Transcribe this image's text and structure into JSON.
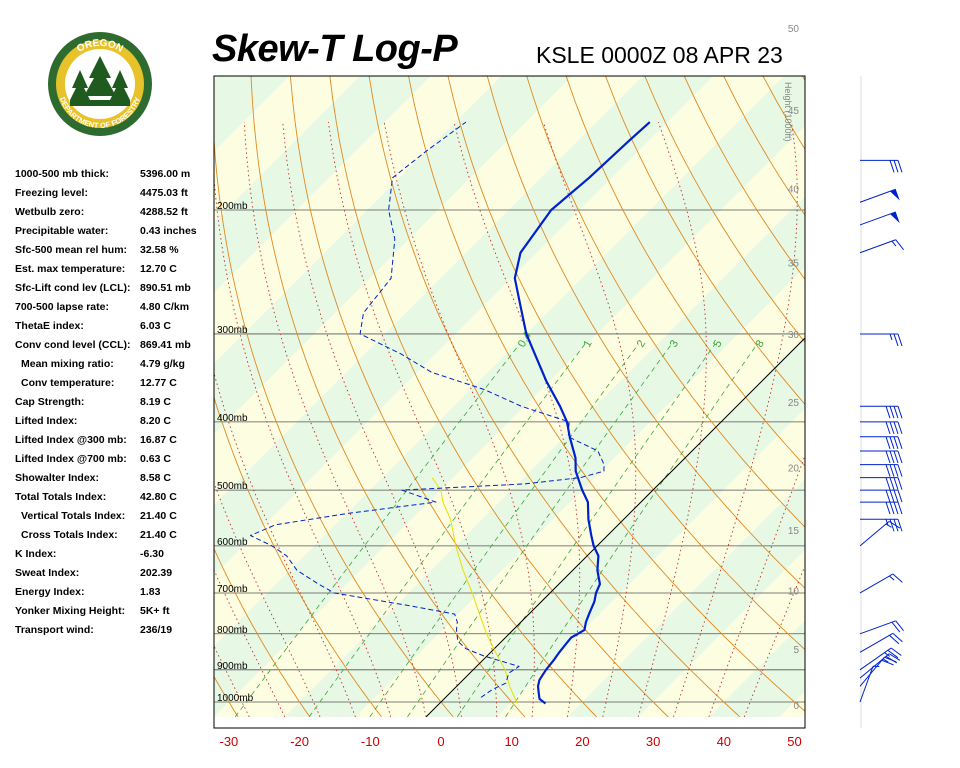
{
  "header": {
    "title": "Skew-T Log-P",
    "station": "KSLE 0000Z 08 APR 23"
  },
  "logo": {
    "top_text": "OREGON",
    "bottom_text": "DEPARTMENT OF FORESTRY",
    "colors": {
      "ring": "#2e6b2e",
      "gold": "#e8c22b",
      "tree": "#1f5a1f"
    }
  },
  "stats": [
    {
      "label": "1000-500 mb thick:",
      "value": "5396.00 m",
      "indent": false
    },
    {
      "label": "Freezing level:",
      "value": "4475.03 ft",
      "indent": false
    },
    {
      "label": "Wetbulb zero:",
      "value": "4288.52 ft",
      "indent": false
    },
    {
      "label": "Precipitable water:",
      "value": "0.43 inches",
      "indent": false
    },
    {
      "label": "Sfc-500 mean rel hum:",
      "value": "32.58 %",
      "indent": false
    },
    {
      "label": "Est. max temperature:",
      "value": "12.70 C",
      "indent": false
    },
    {
      "label": "Sfc-Lift cond lev (LCL):",
      "value": "890.51 mb",
      "indent": false
    },
    {
      "label": "700-500 lapse rate:",
      "value": "4.80 C/km",
      "indent": false
    },
    {
      "label": "ThetaE index:",
      "value": "6.03 C",
      "indent": false
    },
    {
      "label": "Conv cond level (CCL):",
      "value": "869.41 mb",
      "indent": false
    },
    {
      "label": "Mean mixing ratio:",
      "value": "4.79 g/kg",
      "indent": true
    },
    {
      "label": "Conv temperature:",
      "value": "12.77 C",
      "indent": true
    },
    {
      "label": "Cap Strength:",
      "value": "8.19 C",
      "indent": false
    },
    {
      "label": "Lifted Index:",
      "value": "8.20 C",
      "indent": false
    },
    {
      "label": "Lifted Index @300 mb:",
      "value": "16.87 C",
      "indent": false
    },
    {
      "label": "Lifted Index @700 mb:",
      "value": "0.63 C",
      "indent": false
    },
    {
      "label": "Showalter Index:",
      "value": "8.58 C",
      "indent": false
    },
    {
      "label": "Total Totals Index:",
      "value": "42.80 C",
      "indent": false
    },
    {
      "label": "Vertical Totals Index:",
      "value": "21.40 C",
      "indent": true
    },
    {
      "label": "Cross Totals Index:",
      "value": "21.40 C",
      "indent": true
    },
    {
      "label": "K Index:",
      "value": "-6.30",
      "indent": false
    },
    {
      "label": "Sweat Index:",
      "value": "202.39",
      "indent": false
    },
    {
      "label": "Energy Index:",
      "value": "1.83",
      "indent": false
    },
    {
      "label": "Yonker Mixing Height:",
      "value": "5K+ ft",
      "indent": false
    },
    {
      "label": "Transport wind:",
      "value": "236/19",
      "indent": false
    }
  ],
  "chart_data": {
    "type": "line",
    "title": "Skew-T Log-P",
    "x_axis": {
      "ticks": [
        -30,
        -20,
        -10,
        0,
        10,
        20,
        30,
        40,
        50
      ],
      "range": [
        -30,
        50
      ],
      "color": "#cc0000"
    },
    "pressure_levels": [
      {
        "p": 200,
        "label": "200mb"
      },
      {
        "p": 300,
        "label": "300mb"
      },
      {
        "p": 400,
        "label": "400mb"
      },
      {
        "p": 500,
        "label": "500mb"
      },
      {
        "p": 600,
        "label": "600mb"
      },
      {
        "p": 700,
        "label": "700mb"
      },
      {
        "p": 800,
        "label": "800mb"
      },
      {
        "p": 900,
        "label": "900mb"
      },
      {
        "p": 1000,
        "label": "1000mb"
      }
    ],
    "height_axis": {
      "label": "Height (1000ft)",
      "ticks": [
        0,
        5,
        10,
        15,
        20,
        25,
        30,
        35,
        40,
        45,
        50
      ]
    },
    "mixing_ratio_labels": [
      "0.4",
      "1",
      "2",
      "3",
      "5",
      "8"
    ],
    "temperature_line": {
      "name": "Temperature",
      "color": "#0022cc",
      "points": [
        [
          1005,
          15.0
        ],
        [
          990,
          13.5
        ],
        [
          970,
          12.5
        ],
        [
          950,
          11.5
        ],
        [
          930,
          10.8
        ],
        [
          900,
          10.3
        ],
        [
          870,
          10.0
        ],
        [
          850,
          9.7
        ],
        [
          830,
          9.5
        ],
        [
          810,
          9.3
        ],
        [
          790,
          10.1
        ],
        [
          770,
          9.2
        ],
        [
          750,
          8.5
        ],
        [
          720,
          7.5
        ],
        [
          700,
          6.5
        ],
        [
          680,
          5.8
        ],
        [
          650,
          3.5
        ],
        [
          620,
          1.6
        ],
        [
          600,
          -0.5
        ],
        [
          580,
          -2.3
        ],
        [
          550,
          -5.0
        ],
        [
          520,
          -7.5
        ],
        [
          500,
          -10.0
        ],
        [
          470,
          -13.6
        ],
        [
          450,
          -15.5
        ],
        [
          420,
          -19.3
        ],
        [
          400,
          -21.8
        ],
        [
          380,
          -25.0
        ],
        [
          350,
          -30.5
        ],
        [
          300,
          -40.0
        ],
        [
          270,
          -45.5
        ],
        [
          250,
          -49.5
        ],
        [
          230,
          -52.3
        ],
        [
          200,
          -54.0
        ],
        [
          180,
          -53.2
        ],
        [
          160,
          -52.8
        ],
        [
          150,
          -52.5
        ]
      ]
    },
    "dewpoint_line": {
      "name": "Dewpoint",
      "color": "#0022cc",
      "points": [
        [
          985,
          5.0
        ],
        [
          960,
          5.5
        ],
        [
          940,
          6.5
        ],
        [
          910,
          5.5
        ],
        [
          890,
          6.0
        ],
        [
          860,
          -0.5
        ],
        [
          840,
          -4.0
        ],
        [
          820,
          -6.2
        ],
        [
          790,
          -8.0
        ],
        [
          770,
          -9.0
        ],
        [
          750,
          -10.5
        ],
        [
          730,
          -18.0
        ],
        [
          700,
          -30.5
        ],
        [
          680,
          -34.0
        ],
        [
          650,
          -39.0
        ],
        [
          620,
          -42.5
        ],
        [
          600,
          -46.0
        ],
        [
          580,
          -50.5
        ],
        [
          560,
          -48.5
        ],
        [
          540,
          -40.0
        ],
        [
          520,
          -29.0
        ],
        [
          500,
          -35.5
        ],
        [
          490,
          -19.0
        ],
        [
          480,
          -12.0
        ],
        [
          470,
          -9.6
        ],
        [
          460,
          -10.5
        ],
        [
          440,
          -13.3
        ],
        [
          420,
          -19.5
        ],
        [
          400,
          -21.5
        ],
        [
          380,
          -30.5
        ],
        [
          360,
          -38.0
        ],
        [
          340,
          -48.0
        ],
        [
          320,
          -55.0
        ],
        [
          300,
          -63.5
        ],
        [
          280,
          -66.0
        ],
        [
          250,
          -67.0
        ],
        [
          220,
          -72.0
        ],
        [
          200,
          -77.0
        ],
        [
          180,
          -81.0
        ],
        [
          165,
          -80.0
        ],
        [
          150,
          -78.5
        ]
      ]
    },
    "parcel_line": {
      "name": "Parcel",
      "color": "#e8e000",
      "points": [
        [
          1005,
          11.0
        ],
        [
          950,
          7.5
        ],
        [
          900,
          4.5
        ],
        [
          850,
          0.7
        ],
        [
          800,
          -3.2
        ],
        [
          750,
          -7.0
        ],
        [
          700,
          -11.0
        ],
        [
          650,
          -15.5
        ],
        [
          600,
          -20.0
        ],
        [
          550,
          -24.5
        ],
        [
          520,
          -28.0
        ],
        [
          500,
          -30.0
        ],
        [
          480,
          -33.0
        ]
      ]
    },
    "wind_barbs": [
      {
        "p": 1000,
        "dir": 200,
        "spd": 5
      },
      {
        "p": 950,
        "dir": 220,
        "spd": 20
      },
      {
        "p": 925,
        "dir": 230,
        "spd": 25
      },
      {
        "p": 900,
        "dir": 235,
        "spd": 25
      },
      {
        "p": 850,
        "dir": 240,
        "spd": 20
      },
      {
        "p": 800,
        "dir": 250,
        "spd": 20
      },
      {
        "p": 700,
        "dir": 240,
        "spd": 15
      },
      {
        "p": 600,
        "dir": 230,
        "spd": 15
      },
      {
        "p": 550,
        "dir": 270,
        "spd": 35
      },
      {
        "p": 520,
        "dir": 270,
        "spd": 40
      },
      {
        "p": 500,
        "dir": 270,
        "spd": 40
      },
      {
        "p": 480,
        "dir": 270,
        "spd": 40
      },
      {
        "p": 460,
        "dir": 270,
        "spd": 40
      },
      {
        "p": 440,
        "dir": 270,
        "spd": 40
      },
      {
        "p": 420,
        "dir": 270,
        "spd": 40
      },
      {
        "p": 400,
        "dir": 270,
        "spd": 40
      },
      {
        "p": 380,
        "dir": 270,
        "spd": 40
      },
      {
        "p": 300,
        "dir": 270,
        "spd": 25
      },
      {
        "p": 230,
        "dir": 250,
        "spd": 15
      },
      {
        "p": 210,
        "dir": 250,
        "spd": 50
      },
      {
        "p": 195,
        "dir": 250,
        "spd": 50
      },
      {
        "p": 170,
        "dir": 270,
        "spd": 30
      }
    ]
  }
}
